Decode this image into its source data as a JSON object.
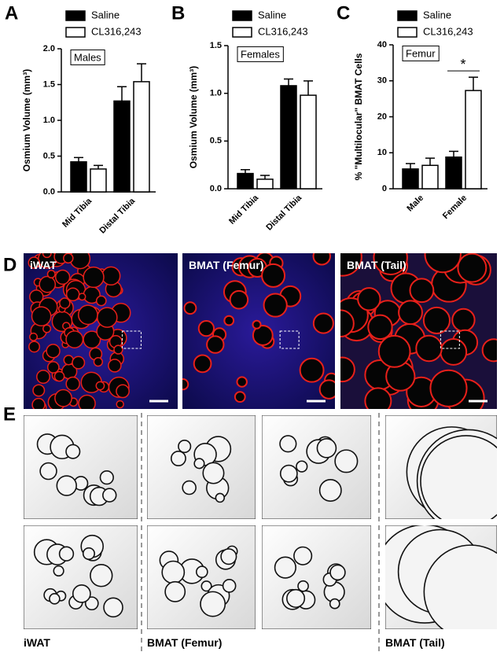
{
  "chart_data": [
    {
      "type": "bar",
      "panel": "A",
      "y_label": "Osmium Volume (mm³)",
      "box_label": "Males",
      "categories": [
        "Mid Tibia",
        "Distal Tibia"
      ],
      "series": [
        {
          "name": "Saline",
          "color": "#000000",
          "values": [
            0.42,
            1.27
          ],
          "errors": [
            0.06,
            0.2
          ]
        },
        {
          "name": "CL316,243",
          "color": "#ffffff",
          "values": [
            0.32,
            1.54
          ],
          "errors": [
            0.05,
            0.25
          ]
        }
      ],
      "ylim": [
        0,
        2
      ],
      "yticks": [
        {
          "value": 0,
          "label": "0.0"
        },
        {
          "value": 0.5,
          "label": "0.5"
        },
        {
          "value": 1,
          "label": "1.0"
        },
        {
          "value": 1.5,
          "label": "1.5"
        },
        {
          "value": 2,
          "label": "2.0"
        }
      ]
    },
    {
      "type": "bar",
      "panel": "B",
      "y_label": "Osmium Volume (mm³)",
      "box_label": "Females",
      "categories": [
        "Mid Tibia",
        "Distal Tibia"
      ],
      "series": [
        {
          "name": "Saline",
          "color": "#000000",
          "values": [
            0.16,
            1.08
          ],
          "errors": [
            0.04,
            0.07
          ]
        },
        {
          "name": "CL316,243",
          "color": "#ffffff",
          "values": [
            0.1,
            0.98
          ],
          "errors": [
            0.04,
            0.15
          ]
        }
      ],
      "ylim": [
        0,
        1.5
      ],
      "yticks": [
        {
          "value": 0,
          "label": "0.0"
        },
        {
          "value": 0.5,
          "label": "0.5"
        },
        {
          "value": 1,
          "label": "1.0"
        },
        {
          "value": 1.5,
          "label": "1.5"
        }
      ]
    },
    {
      "type": "bar",
      "panel": "C",
      "y_label": "% \"Multilocular\" BMAT Cells",
      "box_label": "Femur",
      "annotation": "*",
      "categories": [
        "Male",
        "Female"
      ],
      "series": [
        {
          "name": "Saline",
          "color": "#000000",
          "values": [
            5.5,
            8.8
          ],
          "errors": [
            1.5,
            1.6
          ]
        },
        {
          "name": "CL316,243",
          "color": "#ffffff",
          "values": [
            6.5,
            27.3
          ],
          "errors": [
            2,
            3.7
          ]
        }
      ],
      "ylim": [
        0,
        40
      ],
      "yticks": [
        0,
        10,
        20,
        30,
        40
      ]
    }
  ],
  "figure": {
    "D": {
      "panel": "D",
      "images": [
        "iWAT",
        "BMAT (Femur)",
        "BMAT (Tail)"
      ]
    },
    "E": {
      "panel": "E",
      "labels": [
        "iWAT",
        "BMAT (Femur)",
        "BMAT (Tail)"
      ]
    }
  }
}
